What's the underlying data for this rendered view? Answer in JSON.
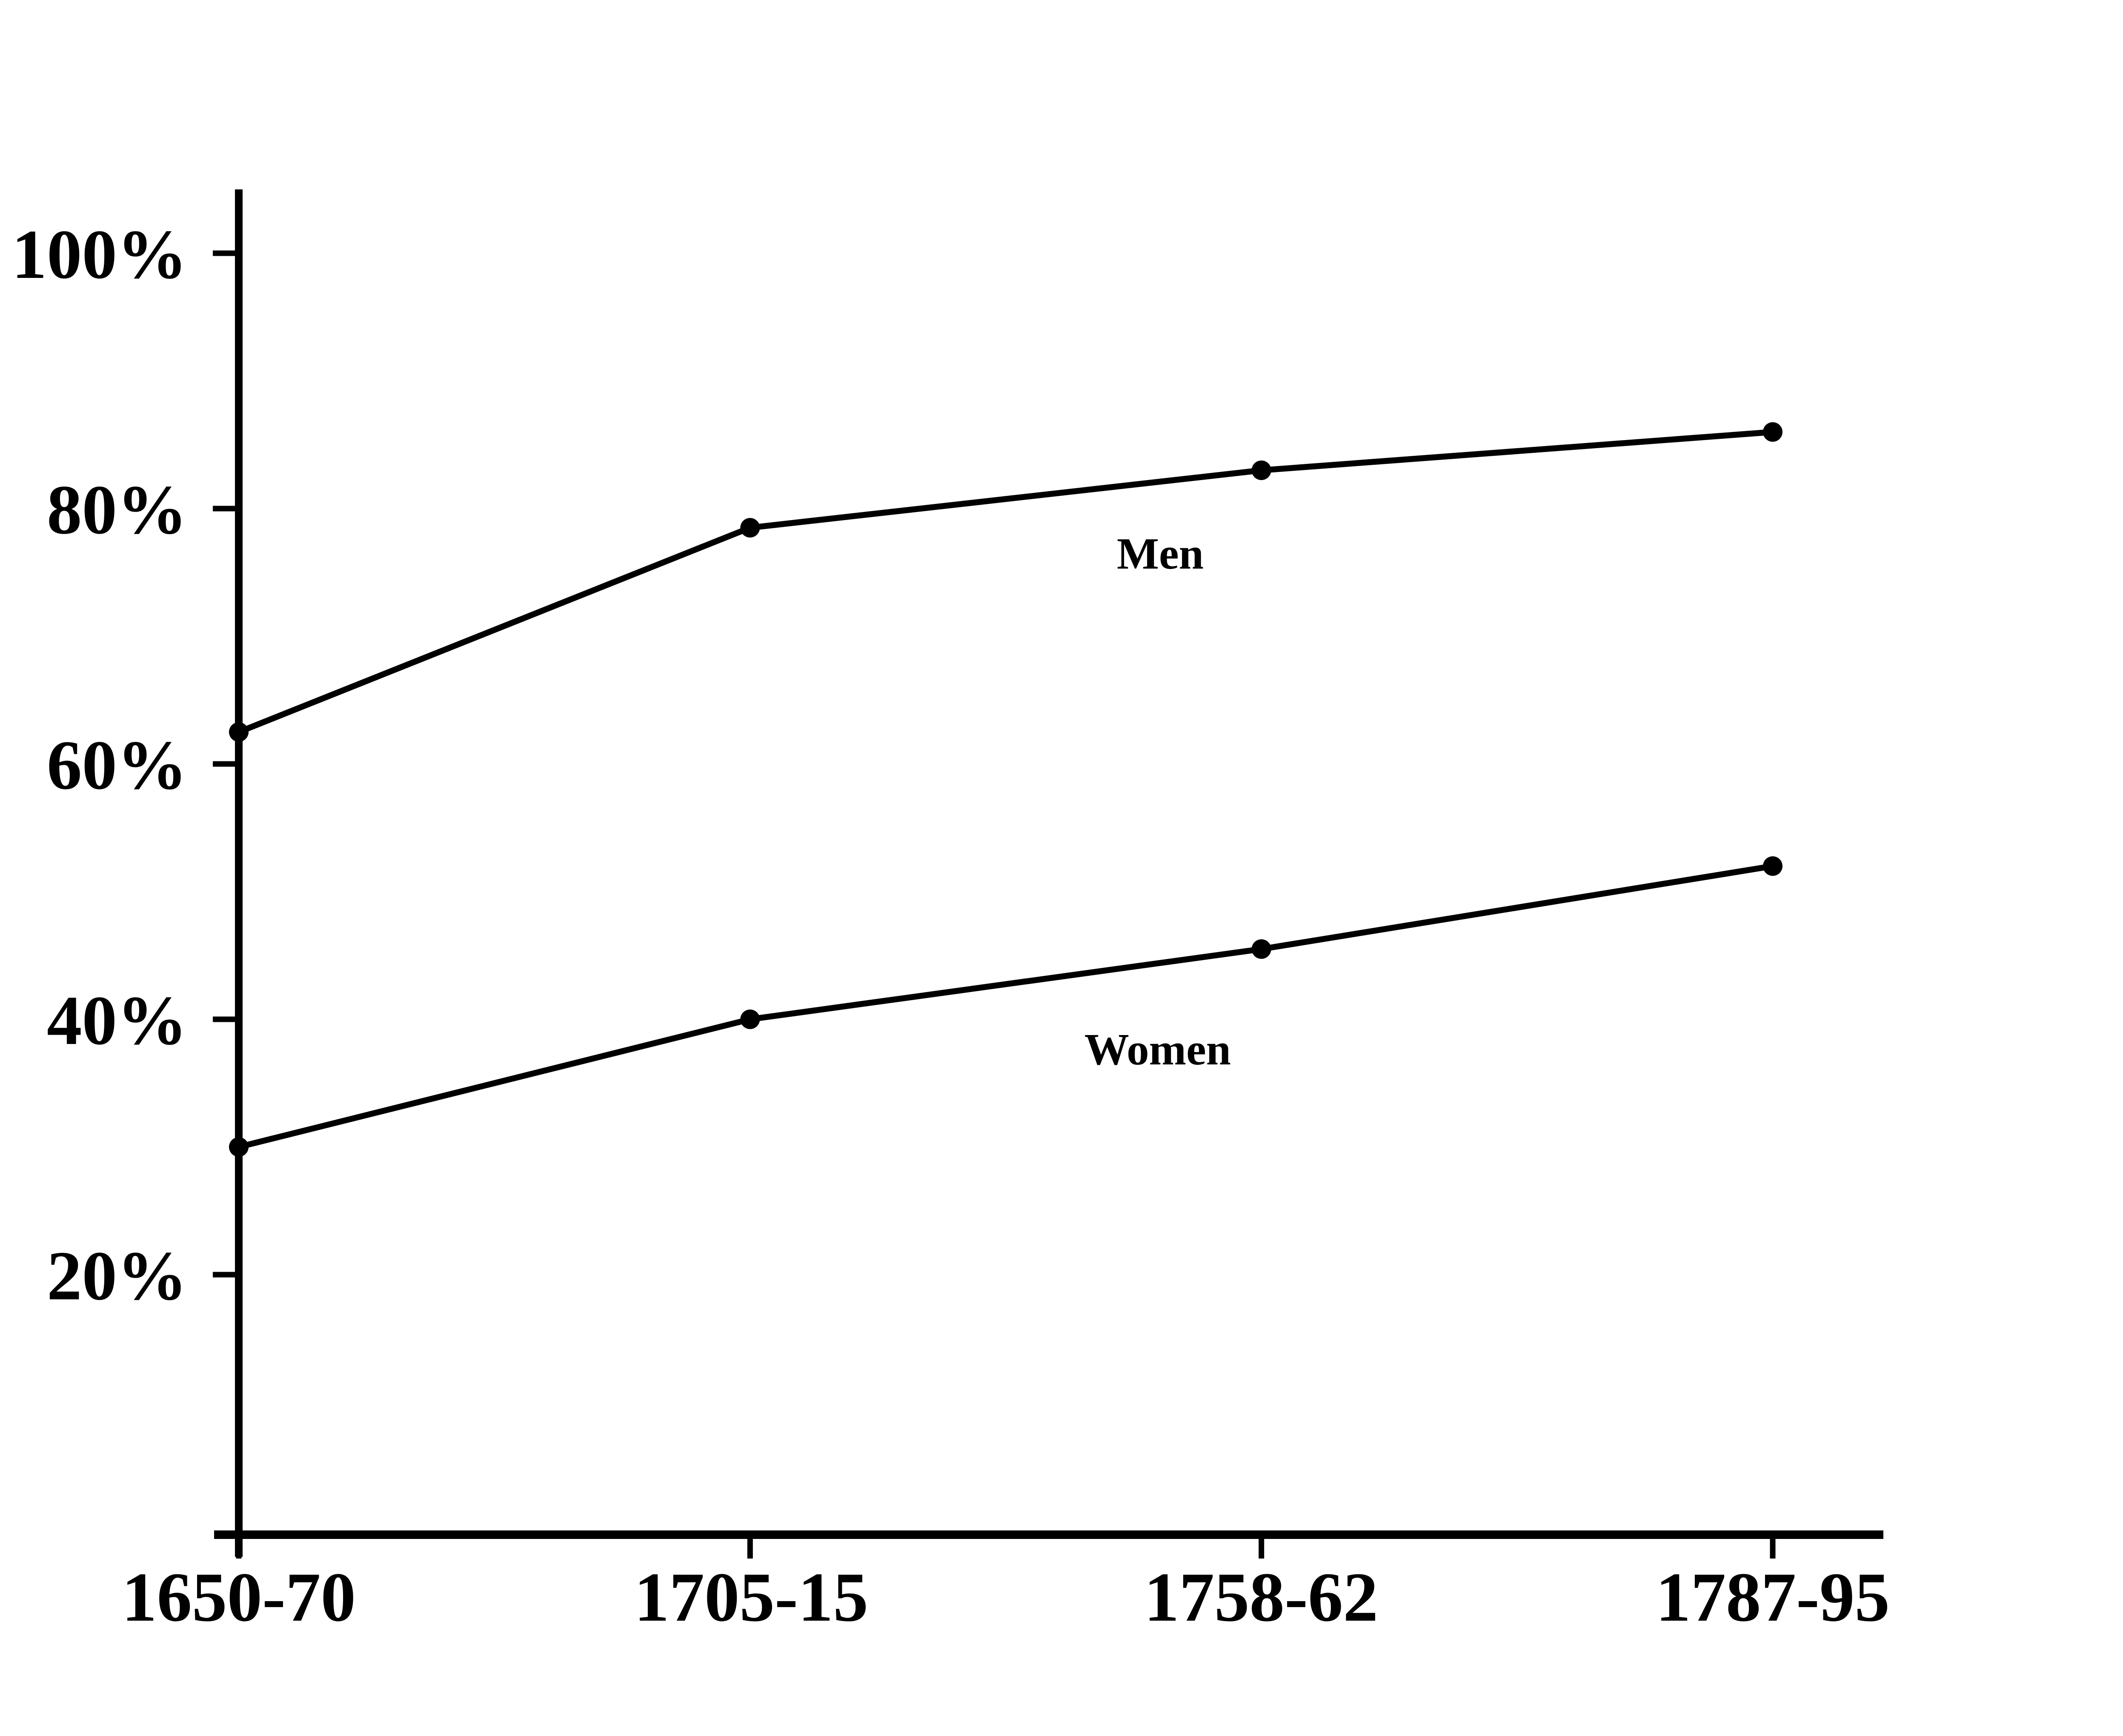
{
  "chart_data": {
    "type": "line",
    "title": "",
    "categories": [
      "1650-70",
      "1705-15",
      "1758-62",
      "1787-95"
    ],
    "series": [
      {
        "name": "Men",
        "values": [
          62.5,
          78.5,
          83.0,
          86.0
        ]
      },
      {
        "name": "Women",
        "values": [
          30.0,
          40.0,
          45.5,
          52.0
        ]
      }
    ],
    "unit": "%",
    "y_axis": {
      "tick_labels": [
        "100%",
        "80%",
        "60%",
        "40%",
        "20%"
      ],
      "tick_values": [
        100,
        80,
        60,
        40,
        20
      ],
      "range": [
        0,
        105
      ]
    },
    "x_axis": {
      "tick_labels": [
        "1650-70",
        "1705-15",
        "1758-62",
        "1787-95"
      ]
    },
    "legend": "inline-labels",
    "grid": false,
    "line_color": "#000000",
    "marker": "dot",
    "background": "#ffffff"
  }
}
